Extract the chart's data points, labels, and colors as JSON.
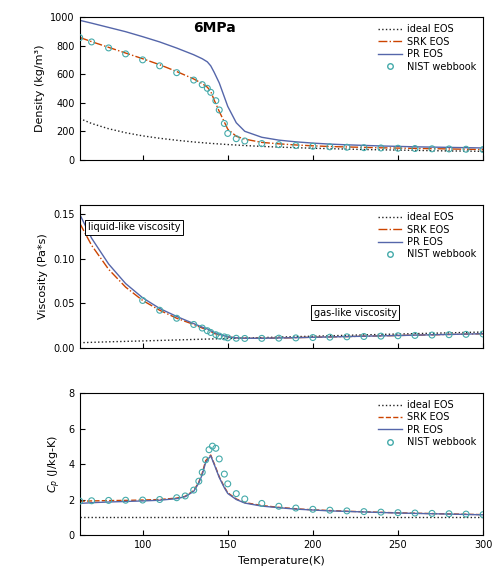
{
  "title": "6MPa",
  "panel1_ylabel": "Density (kg/m³)",
  "panel2_ylabel": "Viscosity (Pa*s)",
  "panel3_ylabel": "$C_p$ (J/kg-K)",
  "xlabel": "Temperature(K)",
  "xrange": [
    63,
    300
  ],
  "xticks": [
    100,
    150,
    200,
    250,
    300
  ],
  "legend_entries": [
    "ideal EOS",
    "SRK EOS",
    "PR EOS",
    "NIST webbook"
  ],
  "density_ideal": {
    "T": [
      63,
      70,
      80,
      90,
      100,
      110,
      120,
      130,
      140,
      150,
      160,
      170,
      180,
      190,
      200,
      210,
      220,
      230,
      240,
      250,
      260,
      270,
      280,
      290,
      300
    ],
    "rho": [
      290,
      255,
      218,
      190,
      168,
      151,
      137,
      125,
      115,
      107,
      100,
      94,
      89,
      85,
      81,
      78,
      75,
      72,
      70,
      68,
      66,
      64,
      62,
      61,
      59
    ]
  },
  "density_SRK": {
    "T": [
      63,
      70,
      80,
      90,
      100,
      110,
      120,
      130,
      135,
      138,
      140,
      142,
      145,
      150,
      155,
      160,
      170,
      180,
      190,
      200,
      210,
      220,
      230,
      240,
      250,
      260,
      270,
      280,
      290,
      300
    ],
    "rho": [
      860,
      830,
      790,
      750,
      710,
      668,
      620,
      568,
      535,
      510,
      480,
      420,
      340,
      215,
      165,
      145,
      122,
      112,
      104,
      98,
      93,
      90,
      87,
      84,
      82,
      80,
      78,
      76,
      74,
      72
    ]
  },
  "density_PR": {
    "T": [
      63,
      70,
      80,
      90,
      100,
      110,
      120,
      130,
      135,
      138,
      140,
      142,
      145,
      150,
      155,
      160,
      170,
      180,
      190,
      200,
      210,
      220,
      230,
      240,
      250,
      260,
      270,
      280,
      290,
      300
    ],
    "rho": [
      980,
      960,
      930,
      900,
      865,
      828,
      785,
      738,
      710,
      688,
      660,
      615,
      540,
      375,
      260,
      200,
      158,
      138,
      126,
      117,
      110,
      105,
      101,
      97,
      94,
      91,
      89,
      87,
      85,
      83
    ]
  },
  "density_NIST": {
    "T": [
      63,
      70,
      80,
      90,
      100,
      110,
      120,
      130,
      135,
      138,
      140,
      143,
      145,
      148,
      150,
      155,
      160,
      170,
      180,
      190,
      200,
      210,
      220,
      230,
      240,
      250,
      260,
      270,
      280,
      290,
      300
    ],
    "rho": [
      858,
      828,
      786,
      744,
      702,
      660,
      612,
      560,
      528,
      502,
      474,
      415,
      350,
      255,
      185,
      148,
      132,
      114,
      106,
      100,
      95,
      91,
      88,
      85,
      83,
      81,
      79,
      77,
      76,
      74,
      72
    ]
  },
  "viscosity_ideal": {
    "T": [
      63,
      80,
      100,
      120,
      140,
      160,
      180,
      200,
      220,
      240,
      260,
      280,
      300
    ],
    "mu": [
      0.0055,
      0.0065,
      0.0075,
      0.0086,
      0.0097,
      0.0107,
      0.0118,
      0.0128,
      0.0138,
      0.0148,
      0.0157,
      0.0166,
      0.0175
    ]
  },
  "viscosity_SRK": {
    "T": [
      63,
      70,
      80,
      90,
      100,
      110,
      120,
      130,
      135,
      138,
      140,
      142,
      145,
      150,
      155,
      160,
      170,
      180,
      190,
      200,
      210,
      220,
      230,
      240,
      250,
      260,
      270,
      280,
      290,
      300
    ],
    "mu": [
      0.14,
      0.115,
      0.088,
      0.068,
      0.053,
      0.042,
      0.033,
      0.026,
      0.022,
      0.02,
      0.018,
      0.016,
      0.014,
      0.012,
      0.011,
      0.0105,
      0.0105,
      0.0108,
      0.0112,
      0.0116,
      0.012,
      0.0124,
      0.0128,
      0.0132,
      0.0136,
      0.014,
      0.0144,
      0.0148,
      0.0152,
      0.0156
    ]
  },
  "viscosity_PR": {
    "T": [
      63,
      70,
      80,
      90,
      100,
      110,
      120,
      130,
      135,
      138,
      140,
      142,
      145,
      150,
      155,
      160,
      170,
      180,
      190,
      200,
      210,
      220,
      230,
      240,
      250,
      260,
      270,
      280,
      290,
      300
    ],
    "mu": [
      0.15,
      0.123,
      0.094,
      0.072,
      0.056,
      0.044,
      0.035,
      0.027,
      0.023,
      0.021,
      0.019,
      0.017,
      0.015,
      0.012,
      0.011,
      0.0105,
      0.0105,
      0.0108,
      0.0112,
      0.0116,
      0.012,
      0.0124,
      0.0128,
      0.0132,
      0.0136,
      0.014,
      0.0144,
      0.0148,
      0.0152,
      0.0156
    ]
  },
  "viscosity_NIST": {
    "T": [
      100,
      110,
      120,
      130,
      135,
      138,
      140,
      143,
      145,
      148,
      150,
      155,
      160,
      170,
      180,
      190,
      200,
      210,
      220,
      230,
      240,
      250,
      260,
      270,
      280,
      290,
      300
    ],
    "mu": [
      0.053,
      0.042,
      0.033,
      0.026,
      0.022,
      0.019,
      0.017,
      0.0145,
      0.013,
      0.012,
      0.011,
      0.0105,
      0.0103,
      0.0104,
      0.0106,
      0.0109,
      0.0113,
      0.0117,
      0.0121,
      0.0125,
      0.0129,
      0.0133,
      0.0137,
      0.0141,
      0.0145,
      0.0149,
      0.0153
    ]
  },
  "cp_ideal": {
    "T": [
      63,
      100,
      150,
      200,
      250,
      300
    ],
    "cp": [
      1.04,
      1.04,
      1.04,
      1.04,
      1.04,
      1.04
    ]
  },
  "cp_SRK": {
    "T": [
      63,
      70,
      80,
      90,
      100,
      110,
      120,
      125,
      130,
      133,
      135,
      137,
      140,
      143,
      145,
      148,
      150,
      155,
      160,
      170,
      180,
      190,
      200,
      210,
      220,
      230,
      240,
      250,
      260,
      270,
      280,
      290,
      300
    ],
    "cp": [
      1.92,
      1.94,
      1.96,
      1.97,
      1.99,
      2.02,
      2.1,
      2.2,
      2.52,
      3.0,
      3.5,
      4.2,
      4.52,
      3.8,
      3.3,
      2.72,
      2.4,
      2.05,
      1.85,
      1.68,
      1.58,
      1.5,
      1.44,
      1.4,
      1.36,
      1.33,
      1.3,
      1.27,
      1.25,
      1.23,
      1.21,
      1.19,
      1.17
    ]
  },
  "cp_PR": {
    "T": [
      63,
      70,
      80,
      90,
      100,
      110,
      120,
      125,
      130,
      133,
      135,
      137,
      140,
      143,
      145,
      148,
      150,
      155,
      160,
      170,
      180,
      190,
      200,
      210,
      220,
      230,
      240,
      250,
      260,
      270,
      280,
      290,
      300
    ],
    "cp": [
      1.8,
      1.84,
      1.88,
      1.91,
      1.94,
      1.98,
      2.07,
      2.18,
      2.48,
      2.95,
      3.42,
      4.1,
      4.48,
      3.76,
      3.26,
      2.68,
      2.36,
      2.02,
      1.82,
      1.65,
      1.56,
      1.48,
      1.43,
      1.38,
      1.35,
      1.32,
      1.29,
      1.26,
      1.24,
      1.22,
      1.2,
      1.18,
      1.16
    ]
  },
  "cp_NIST": {
    "T": [
      63,
      70,
      80,
      90,
      100,
      110,
      120,
      125,
      130,
      133,
      135,
      137,
      139,
      141,
      143,
      145,
      148,
      150,
      155,
      160,
      170,
      180,
      190,
      200,
      210,
      220,
      230,
      240,
      250,
      260,
      270,
      280,
      290,
      300
    ],
    "cp": [
      1.93,
      1.95,
      1.97,
      1.98,
      1.99,
      2.02,
      2.12,
      2.22,
      2.55,
      3.05,
      3.55,
      4.25,
      4.82,
      5.02,
      4.9,
      4.3,
      3.45,
      2.9,
      2.35,
      2.05,
      1.8,
      1.64,
      1.54,
      1.47,
      1.42,
      1.38,
      1.34,
      1.31,
      1.28,
      1.26,
      1.24,
      1.22,
      1.2,
      1.17
    ]
  },
  "color_ideal": "#222222",
  "color_SRK": "#cc4400",
  "color_PR": "#5566aa",
  "color_NIST": "#44aaaa",
  "annotation1": "liquid-like viscosity",
  "annotation2": "gas-like viscosity",
  "density_ylim": [
    0,
    1000
  ],
  "density_yticks": [
    0,
    200,
    400,
    600,
    800,
    1000
  ],
  "viscosity_ylim": [
    0,
    0.16
  ],
  "viscosity_yticks": [
    0,
    0.05,
    0.1,
    0.15
  ],
  "cp_ylim": [
    0,
    8
  ],
  "cp_yticks": [
    0,
    2,
    4,
    6,
    8
  ]
}
